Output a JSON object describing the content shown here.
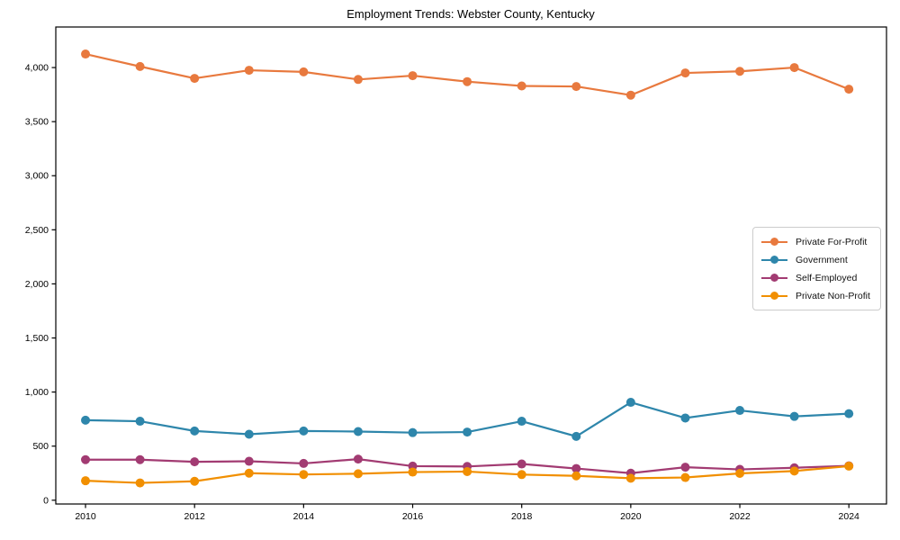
{
  "chart_data": {
    "type": "line",
    "title": "Employment Trends: Webster County, Kentucky",
    "xlabel": "",
    "ylabel": "",
    "x": [
      2010,
      2011,
      2012,
      2013,
      2014,
      2015,
      2016,
      2017,
      2018,
      2019,
      2020,
      2021,
      2022,
      2023,
      2024
    ],
    "series": [
      {
        "name": "Private For-Profit",
        "color": "#E8793E",
        "values": [
          4125,
          4010,
          3900,
          3975,
          3960,
          3890,
          3925,
          3870,
          3830,
          3825,
          3745,
          3950,
          3965,
          4000,
          3800
        ]
      },
      {
        "name": "Government",
        "color": "#2E86AB",
        "values": [
          740,
          730,
          640,
          610,
          640,
          635,
          625,
          630,
          730,
          590,
          905,
          760,
          830,
          775,
          800
        ]
      },
      {
        "name": "Self-Employed",
        "color": "#A23B72",
        "values": [
          375,
          375,
          355,
          360,
          340,
          380,
          315,
          312,
          335,
          293,
          250,
          305,
          285,
          300,
          318
        ]
      },
      {
        "name": "Private Non-Profit",
        "color": "#F18F01",
        "values": [
          180,
          160,
          175,
          250,
          238,
          245,
          260,
          265,
          237,
          225,
          203,
          210,
          248,
          270,
          315
        ]
      }
    ],
    "xticks": [
      2010,
      2012,
      2014,
      2016,
      2018,
      2020,
      2022,
      2024
    ],
    "yticks": [
      0,
      500,
      1000,
      1500,
      2000,
      2500,
      3000,
      3500,
      4000
    ],
    "ytick_labels": [
      "0",
      "500",
      "1,000",
      "1,500",
      "2,000",
      "2,500",
      "3,000",
      "3,500",
      "4,000"
    ],
    "xlim": [
      2009.455,
      2024.69
    ],
    "ylim": [
      -35,
      4375
    ],
    "grid": false,
    "legend_position": "center-right",
    "axis_color": "#000000"
  }
}
